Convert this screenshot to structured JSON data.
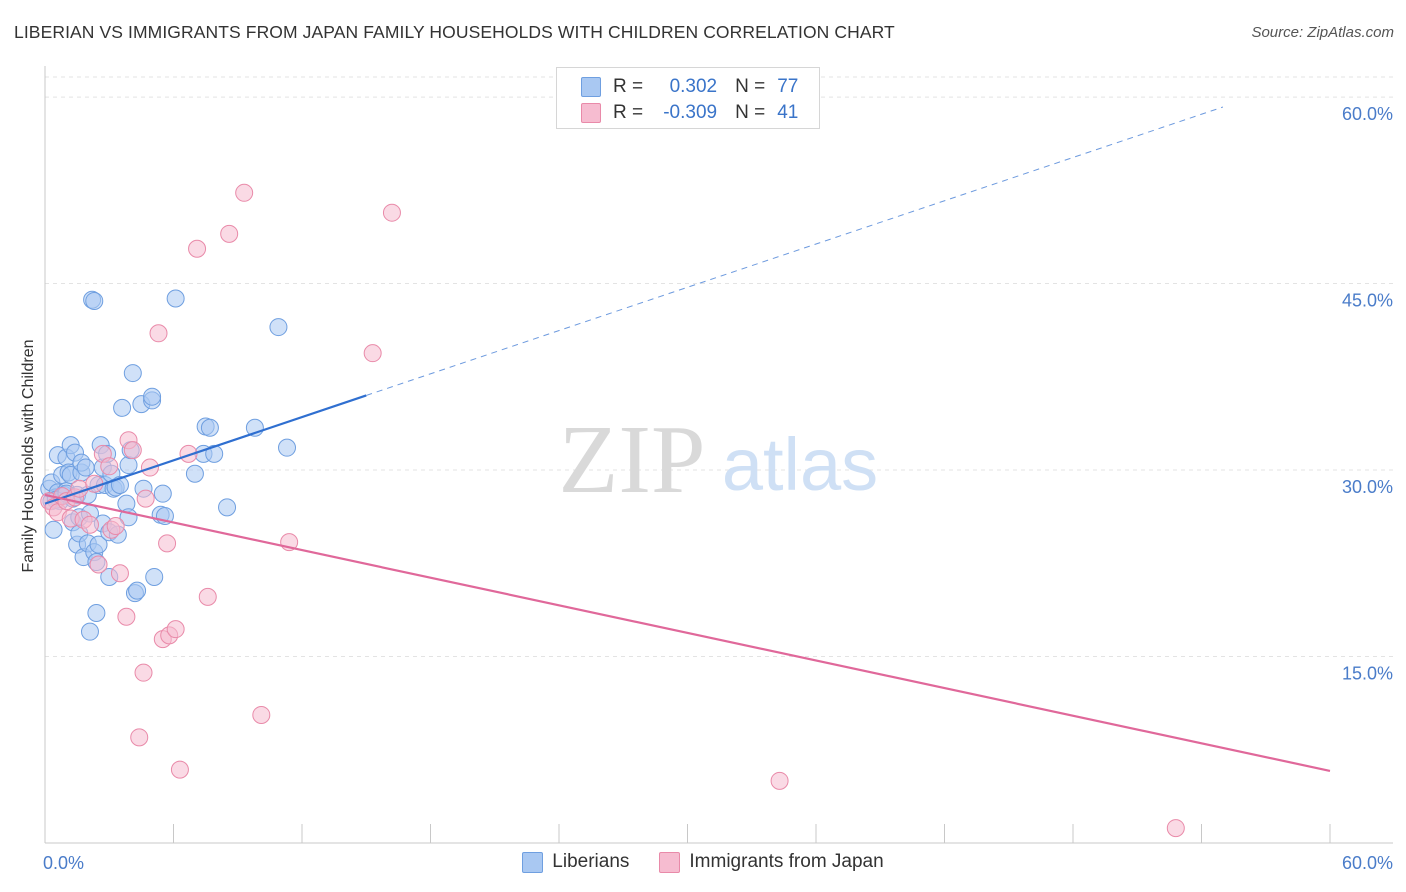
{
  "title": "LIBERIAN VS IMMIGRANTS FROM JAPAN FAMILY HOUSEHOLDS WITH CHILDREN CORRELATION CHART",
  "source": "Source: ZipAtlas.com",
  "watermark": {
    "zip": "ZIP",
    "atlas": "atlas"
  },
  "legend": {
    "rows": [
      {
        "r_label": "R =",
        "r_value": "0.302",
        "n_label": "N =",
        "n_value": "77"
      },
      {
        "r_label": "R =",
        "r_value": "-0.309",
        "n_label": "N =",
        "n_value": "41"
      }
    ]
  },
  "colors": {
    "blue_fill": "#a9c8f2",
    "blue_stroke": "#6f9fe0",
    "blue_line": "#2f6fd0",
    "pink_fill": "#f6bcd0",
    "pink_stroke": "#e98aa9",
    "pink_line": "#e0689a",
    "tick": "#4a7cc9",
    "grid": "#e3e3e3"
  },
  "chart_data": {
    "type": "scatter",
    "title": "LIBERIAN VS IMMIGRANTS FROM JAPAN FAMILY HOUSEHOLDS WITH CHILDREN CORRELATION CHART",
    "xlabel": "",
    "ylabel": "Family Households with Children",
    "xlim": [
      0,
      60
    ],
    "ylim": [
      0,
      62.5
    ],
    "x_tick_labels": [
      "0.0%",
      "60.0%"
    ],
    "y_ticks": [
      {
        "value": 15,
        "label": "15.0%"
      },
      {
        "value": 30,
        "label": "30.0%"
      },
      {
        "value": 45,
        "label": "45.0%"
      },
      {
        "value": 60,
        "label": "60.0%"
      }
    ],
    "grid": true,
    "series": [
      {
        "name": "Liberians",
        "color": "#a9c8f2",
        "points": [
          [
            0.2,
            28.5
          ],
          [
            0.3,
            29.0
          ],
          [
            0.3,
            27.5
          ],
          [
            0.4,
            25.2
          ],
          [
            0.5,
            27.8
          ],
          [
            0.6,
            28.2
          ],
          [
            0.6,
            31.2
          ],
          [
            0.7,
            27.5
          ],
          [
            0.8,
            29.6
          ],
          [
            0.9,
            28.0
          ],
          [
            1.0,
            31.0
          ],
          [
            1.0,
            28.3
          ],
          [
            1.1,
            29.8
          ],
          [
            1.2,
            32.0
          ],
          [
            1.2,
            29.6
          ],
          [
            1.3,
            27.7
          ],
          [
            1.3,
            25.8
          ],
          [
            1.4,
            31.4
          ],
          [
            1.5,
            28.0
          ],
          [
            1.5,
            24.0
          ],
          [
            1.6,
            26.2
          ],
          [
            1.6,
            24.9
          ],
          [
            1.7,
            29.8
          ],
          [
            1.7,
            30.6
          ],
          [
            1.8,
            23.0
          ],
          [
            1.9,
            30.2
          ],
          [
            2.0,
            24.1
          ],
          [
            2.0,
            28.0
          ],
          [
            2.1,
            26.5
          ],
          [
            2.1,
            17.0
          ],
          [
            2.2,
            43.7
          ],
          [
            2.3,
            43.6
          ],
          [
            2.3,
            23.4
          ],
          [
            2.4,
            22.6
          ],
          [
            2.5,
            24.0
          ],
          [
            2.4,
            18.5
          ],
          [
            2.5,
            28.8
          ],
          [
            2.6,
            32.0
          ],
          [
            2.7,
            30.2
          ],
          [
            2.7,
            25.7
          ],
          [
            2.8,
            28.8
          ],
          [
            2.9,
            31.3
          ],
          [
            3.0,
            25.0
          ],
          [
            3.0,
            21.4
          ],
          [
            3.1,
            29.7
          ],
          [
            3.2,
            28.5
          ],
          [
            3.3,
            28.6
          ],
          [
            3.4,
            24.8
          ],
          [
            3.5,
            28.8
          ],
          [
            3.6,
            35.0
          ],
          [
            3.8,
            27.3
          ],
          [
            3.9,
            26.2
          ],
          [
            3.9,
            30.4
          ],
          [
            4.0,
            31.6
          ],
          [
            4.1,
            37.8
          ],
          [
            4.2,
            20.1
          ],
          [
            4.3,
            20.3
          ],
          [
            4.5,
            35.3
          ],
          [
            4.6,
            28.5
          ],
          [
            5.0,
            35.6
          ],
          [
            5.0,
            35.9
          ],
          [
            5.1,
            21.4
          ],
          [
            5.4,
            26.4
          ],
          [
            5.5,
            28.1
          ],
          [
            5.6,
            26.3
          ],
          [
            6.1,
            43.8
          ],
          [
            7.0,
            29.7
          ],
          [
            7.4,
            31.3
          ],
          [
            7.5,
            33.5
          ],
          [
            7.7,
            33.4
          ],
          [
            7.9,
            31.3
          ],
          [
            8.5,
            27.0
          ],
          [
            9.8,
            33.4
          ],
          [
            10.9,
            41.5
          ],
          [
            11.3,
            31.8
          ],
          [
            0.5,
            27.6
          ],
          [
            1.0,
            28.1
          ]
        ]
      },
      {
        "name": "Immigrants from Japan",
        "color": "#f6bcd0",
        "points": [
          [
            0.2,
            27.5
          ],
          [
            0.4,
            27.0
          ],
          [
            0.6,
            26.6
          ],
          [
            0.8,
            27.9
          ],
          [
            1.0,
            27.5
          ],
          [
            1.2,
            26.1
          ],
          [
            1.4,
            27.8
          ],
          [
            1.6,
            28.5
          ],
          [
            1.8,
            26.0
          ],
          [
            2.1,
            25.6
          ],
          [
            2.3,
            28.9
          ],
          [
            2.5,
            22.4
          ],
          [
            2.7,
            31.3
          ],
          [
            3.0,
            30.3
          ],
          [
            3.1,
            25.2
          ],
          [
            3.3,
            25.5
          ],
          [
            3.5,
            21.7
          ],
          [
            3.8,
            18.2
          ],
          [
            3.9,
            32.4
          ],
          [
            4.1,
            31.6
          ],
          [
            4.4,
            8.5
          ],
          [
            4.6,
            13.7
          ],
          [
            4.7,
            27.7
          ],
          [
            4.9,
            30.2
          ],
          [
            5.3,
            41.0
          ],
          [
            5.5,
            16.4
          ],
          [
            5.7,
            24.1
          ],
          [
            5.8,
            16.7
          ],
          [
            6.1,
            17.2
          ],
          [
            6.3,
            5.9
          ],
          [
            6.7,
            31.3
          ],
          [
            7.1,
            47.8
          ],
          [
            7.6,
            19.8
          ],
          [
            8.6,
            49.0
          ],
          [
            9.3,
            52.3
          ],
          [
            10.1,
            10.3
          ],
          [
            11.4,
            24.2
          ],
          [
            15.3,
            39.4
          ],
          [
            16.2,
            50.7
          ],
          [
            34.3,
            5.0
          ],
          [
            52.8,
            1.2
          ]
        ]
      }
    ],
    "trend_lines": [
      {
        "series": "Liberians",
        "x_start": 0.0,
        "y_start": 27.3,
        "x_solid_end": 15.0,
        "x_dashed_end": 55.0
      },
      {
        "series": "Immigrants from Japan",
        "x_start": 0.0,
        "y_start": 28.0,
        "x_end": 60.0,
        "y_end": 5.8
      }
    ]
  }
}
